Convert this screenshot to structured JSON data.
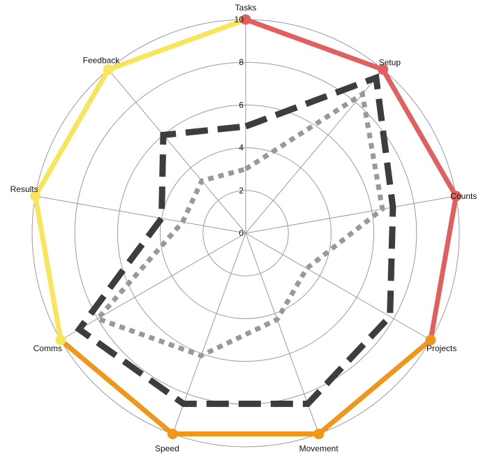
{
  "chart_data": {
    "type": "radar",
    "axes": [
      "Tasks",
      "Setup",
      "Counts",
      "Projects",
      "Movement",
      "Speed",
      "Comms",
      "Results",
      "Feedback"
    ],
    "r_ticks": [
      0,
      2,
      4,
      6,
      8,
      10
    ],
    "r_range": [
      0,
      10
    ],
    "grid": true,
    "colors": {
      "grid": "#9a9a9a",
      "outer_red": "#e06060",
      "outer_orange": "#f0961a",
      "outer_yellow": "#f7e65a",
      "series_dark": "#3d3d3d",
      "series_gray": "#999999"
    },
    "series": [
      {
        "style": "outer-multicolor",
        "values": [
          10,
          10,
          10,
          10,
          10,
          10,
          10,
          10,
          10
        ],
        "segment_colors": [
          "outer_red",
          "outer_red",
          "outer_red",
          "outer_orange",
          "outer_orange",
          "outer_orange",
          "outer_yellow",
          "outer_yellow",
          "outer_yellow"
        ]
      },
      {
        "style": "dashed",
        "color": "series_dark",
        "values": [
          5,
          9.5,
          7,
          7.8,
          8.5,
          8.5,
          9,
          4,
          6
        ]
      },
      {
        "style": "dotted",
        "color": "series_gray",
        "values": [
          3,
          8.5,
          6.5,
          3.3,
          4.3,
          6.1,
          8,
          3,
          3.2
        ]
      }
    ]
  }
}
